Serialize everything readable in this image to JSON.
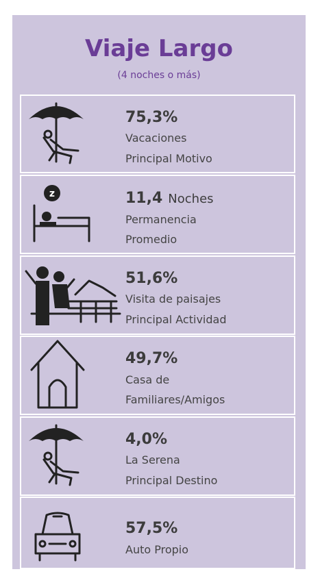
{
  "header": {
    "title": "Viaje Largo",
    "subtitle": "(4 noches o más)"
  },
  "items": [
    {
      "value": "75,3%",
      "lines": [
        "Vacaciones",
        "Principal Motivo"
      ]
    },
    {
      "value": "11,4",
      "unit": "Noches",
      "lines": [
        "Permanencia",
        "Promedio"
      ]
    },
    {
      "value": "51,6%",
      "lines": [
        "Visita de paisajes",
        "Principal Actividad"
      ]
    },
    {
      "value": "49,7%",
      "lines": [
        "Casa de",
        "Familiares/Amigos"
      ]
    },
    {
      "value": "4,0%",
      "lines": [
        "La Serena",
        "Principal Destino"
      ]
    },
    {
      "value": "57,5%",
      "lines": [
        "Auto Propio"
      ]
    }
  ]
}
